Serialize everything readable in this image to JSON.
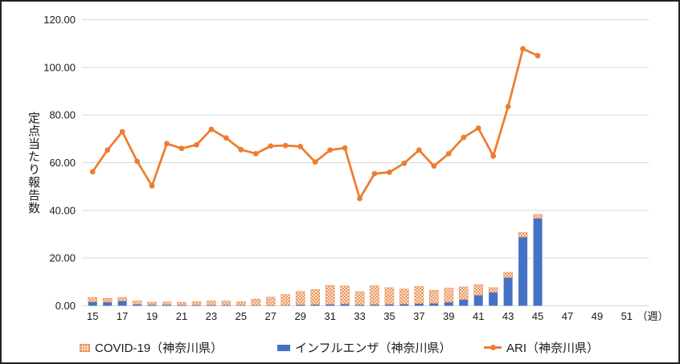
{
  "chart": {
    "y_axis_title": "定点当たり報告数",
    "x_axis_unit_label": "（週）"
  },
  "colors": {
    "bar_influenza": "#4472C4",
    "line_ari": "#ED7D31",
    "covid_pattern_fg": "#E9955F",
    "covid_pattern_bg": "#FCE3CF",
    "gridline": "#D9D9D9",
    "axis_line": "#D9D9D9",
    "text": "#1A1A1A"
  },
  "chart_data": {
    "type": "combo-stacked-bar-line",
    "x_axis": {
      "start_week": 15,
      "end_week": 52,
      "unit_label": "（週）"
    },
    "ylim": [
      0,
      120
    ],
    "grid": "horizontal",
    "legend_position": "bottom",
    "y_ticks": [
      {
        "value": 0,
        "label": "0.00"
      },
      {
        "value": 20,
        "label": "20.00"
      },
      {
        "value": 40,
        "label": "40.00"
      },
      {
        "value": 60,
        "label": "60.00"
      },
      {
        "value": 80,
        "label": "80.00"
      },
      {
        "value": 100,
        "label": "100.00"
      },
      {
        "value": 120,
        "label": "120.00"
      }
    ],
    "x_tick_weeks": [
      15,
      17,
      19,
      21,
      23,
      25,
      27,
      29,
      31,
      33,
      35,
      37,
      39,
      41,
      43,
      45,
      47,
      49,
      51
    ],
    "weeks": [
      15,
      16,
      17,
      18,
      19,
      20,
      21,
      22,
      23,
      24,
      25,
      26,
      27,
      28,
      29,
      30,
      31,
      32,
      33,
      34,
      35,
      36,
      37,
      38,
      39,
      40,
      41,
      42,
      43,
      44,
      45
    ],
    "series": [
      {
        "name": "COVID-19（神奈川県）",
        "type": "bar",
        "role": "bar-top",
        "fill": "pattern-orange-dots",
        "values": [
          1.9,
          1.6,
          1.5,
          1.4,
          1.1,
          1.2,
          1.2,
          1.4,
          1.7,
          1.7,
          1.5,
          2.6,
          3.4,
          4.5,
          5.6,
          6.3,
          7.9,
          7.6,
          5.5,
          7.9,
          7.0,
          6.3,
          7.2,
          5.5,
          5.9,
          5.3,
          4.4,
          2.0,
          2.2,
          1.9,
          1.6
        ]
      },
      {
        "name": "インフルエンザ（神奈川県）",
        "type": "bar",
        "role": "bar-bottom",
        "fill": "#4472C4",
        "values": [
          1.6,
          1.5,
          2.0,
          0.6,
          0.4,
          0.4,
          0.3,
          0.3,
          0.3,
          0.3,
          0.2,
          0.2,
          0.2,
          0.2,
          0.4,
          0.5,
          0.6,
          0.7,
          0.4,
          0.5,
          0.6,
          0.7,
          0.9,
          1.0,
          1.5,
          2.6,
          4.4,
          5.6,
          11.8,
          28.8,
          36.7
        ]
      },
      {
        "name": "ARI（神奈川県）",
        "type": "line",
        "role": "line",
        "color": "#ED7D31",
        "values": [
          56.2,
          65.3,
          73.0,
          60.6,
          50.3,
          68.0,
          66.0,
          67.5,
          74.0,
          70.4,
          65.5,
          63.8,
          67.0,
          67.2,
          66.8,
          60.3,
          65.3,
          66.2,
          45.0,
          55.4,
          56.0,
          59.8,
          65.3,
          58.6,
          63.8,
          70.6,
          74.5,
          62.8,
          83.5,
          107.8,
          104.9
        ]
      }
    ]
  }
}
